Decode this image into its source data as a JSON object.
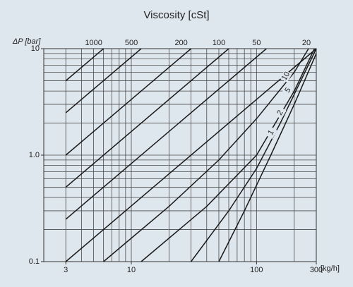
{
  "chart_data": {
    "type": "line",
    "title": "Viscosity [cSt]",
    "y_label": "ΔP [bar]",
    "x_label": "[kg/h]",
    "xscale": "log",
    "yscale": "log",
    "xlim": [
      2,
      300
    ],
    "ylim": [
      0.1,
      10
    ],
    "xticks": [
      3,
      10,
      100,
      300
    ],
    "yticks": [
      0.1,
      {
        "value": 1,
        "label": "1.0"
      },
      10
    ],
    "x_minor_ticks": [
      2,
      3,
      4,
      5,
      6,
      7,
      8,
      9,
      10,
      20,
      30,
      40,
      50,
      60,
      70,
      80,
      90,
      100,
      200,
      300
    ],
    "y_minor_ticks": [
      0.1,
      0.2,
      0.3,
      0.4,
      0.5,
      0.6,
      0.7,
      0.8,
      0.9,
      1,
      2,
      3,
      4,
      5,
      6,
      7,
      8,
      9,
      10
    ],
    "grid": true,
    "series": [
      {
        "name": "1000",
        "color": "#1a1a1a",
        "x": [
          3,
          6
        ],
        "values": [
          5,
          10
        ]
      },
      {
        "name": "500",
        "color": "#1a1a1a",
        "x": [
          3,
          12
        ],
        "values": [
          2.5,
          10
        ]
      },
      {
        "name": "200",
        "color": "#1a1a1a",
        "x": [
          3,
          30
        ],
        "values": [
          1,
          10
        ]
      },
      {
        "name": "100",
        "color": "#1a1a1a",
        "x": [
          3,
          60
        ],
        "values": [
          0.5,
          10
        ]
      },
      {
        "name": "50",
        "color": "#1a1a1a",
        "x": [
          3,
          120
        ],
        "values": [
          0.25,
          10
        ]
      },
      {
        "name": "20",
        "color": "#1a1a1a",
        "x": [
          3,
          300
        ],
        "values": [
          0.1,
          10
        ]
      },
      {
        "name": "10",
        "color": "#1a1a1a",
        "x": [
          6,
          20,
          50,
          100,
          200,
          260
        ],
        "values": [
          0.1,
          0.33,
          0.9,
          2.2,
          6,
          10
        ]
      },
      {
        "name": "5",
        "color": "#1a1a1a",
        "x": [
          12,
          40,
          100,
          200,
          290
        ],
        "values": [
          0.1,
          0.33,
          1.0,
          4,
          10
        ]
      },
      {
        "name": "2",
        "color": "#1a1a1a",
        "x": [
          30,
          60,
          100,
          155,
          300
        ],
        "values": [
          0.1,
          0.3,
          0.75,
          2,
          10
        ]
      },
      {
        "name": "1",
        "color": "#1a1a1a",
        "x": [
          50,
          80,
          130,
          200,
          300
        ],
        "values": [
          0.1,
          0.3,
          1.0,
          3,
          9
        ]
      }
    ]
  }
}
